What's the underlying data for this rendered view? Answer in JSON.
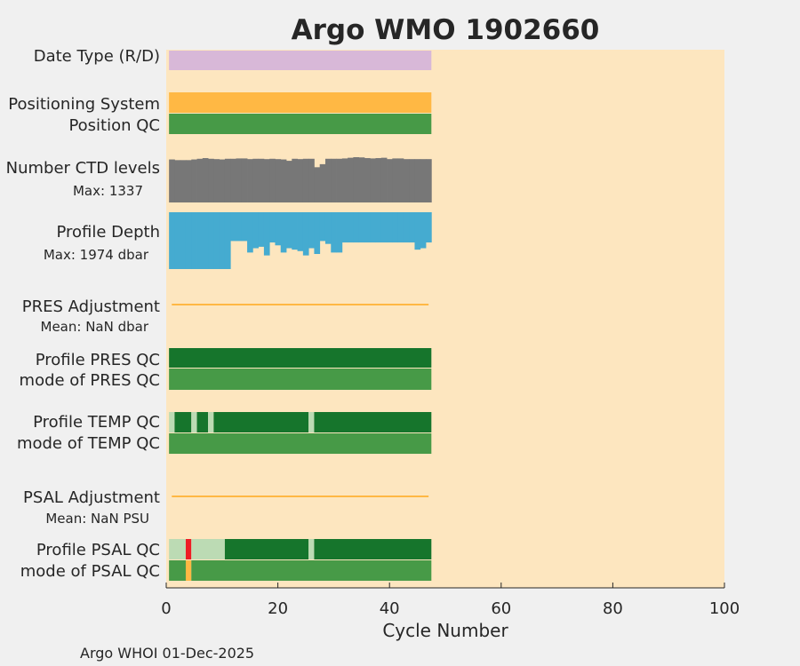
{
  "chart_data": {
    "type": "bar",
    "title": "Argo WMO 1902660",
    "xlabel": "Cycle Number",
    "xlim": [
      0,
      100
    ],
    "xticks": [
      0,
      20,
      40,
      60,
      80,
      100
    ],
    "footer": "Argo WHOI 01-Dec-2025",
    "grid": false,
    "rows": {
      "date_type": {
        "label": "Date Type (R/D)",
        "color": "#d8b8d8",
        "first_cycle": 1,
        "last_cycle": 47
      },
      "positioning_system": {
        "label": "Positioning System",
        "color": "#ffb844",
        "first_cycle": 1,
        "last_cycle": 47
      },
      "position_qc": {
        "label": "Position QC",
        "color": "#479a47",
        "first_cycle": 1,
        "last_cycle": 47
      },
      "ctd_levels": {
        "label": "Number CTD levels",
        "max_label": "Max: 1337",
        "max": 1337,
        "color": "#777777",
        "values": [
          1270,
          1250,
          1250,
          1250,
          1270,
          1290,
          1310,
          1290,
          1280,
          1270,
          1290,
          1290,
          1300,
          1300,
          1280,
          1290,
          1290,
          1280,
          1290,
          1280,
          1270,
          1230,
          1290,
          1280,
          1290,
          1290,
          1040,
          1130,
          1290,
          1290,
          1290,
          1300,
          1320,
          1337,
          1330,
          1310,
          1300,
          1310,
          1320,
          1280,
          1300,
          1300,
          1280,
          1280,
          1280,
          1280,
          1280
        ]
      },
      "profile_depth": {
        "label": "Profile Depth",
        "max_label": "Max: 1974 dbar",
        "max": 1974,
        "color": "#45abd0",
        "values": [
          1974,
          1974,
          1974,
          1974,
          1974,
          1974,
          1974,
          1974,
          1974,
          1974,
          1974,
          1000,
          1000,
          1000,
          1400,
          1250,
          1200,
          1500,
          1050,
          1150,
          1400,
          1250,
          1300,
          1350,
          1500,
          1250,
          1450,
          1000,
          1100,
          1400,
          1400,
          1050,
          1050,
          1050,
          1050,
          1050,
          1050,
          1050,
          1050,
          1050,
          1050,
          1050,
          1050,
          1050,
          1300,
          1250,
          1050
        ]
      },
      "pres_adjustment": {
        "label": "PRES Adjustment",
        "mean_label": "Mean:  NaN dbar",
        "mean_color": "#e2137f",
        "line_color": "#ffb844"
      },
      "profile_pres_qc": {
        "label": "Profile PRES QC",
        "segments": [
          {
            "from": 1,
            "to": 47,
            "color": "#16752c"
          }
        ]
      },
      "mode_pres_qc": {
        "label": "mode of PRES QC",
        "segments": [
          {
            "from": 1,
            "to": 47,
            "color": "#479a47"
          }
        ]
      },
      "profile_temp_qc": {
        "label": "Profile TEMP QC",
        "segments": [
          {
            "from": 1,
            "to": 1,
            "color": "#bcdbb4"
          },
          {
            "from": 2,
            "to": 4,
            "color": "#16752c"
          },
          {
            "from": 5,
            "to": 5,
            "color": "#bcdbb4"
          },
          {
            "from": 6,
            "to": 7,
            "color": "#16752c"
          },
          {
            "from": 8,
            "to": 8,
            "color": "#bcdbb4"
          },
          {
            "from": 9,
            "to": 25,
            "color": "#16752c"
          },
          {
            "from": 26,
            "to": 26,
            "color": "#bcdbb4"
          },
          {
            "from": 27,
            "to": 47,
            "color": "#16752c"
          }
        ]
      },
      "mode_temp_qc": {
        "label": "mode of TEMP QC",
        "segments": [
          {
            "from": 1,
            "to": 47,
            "color": "#479a47"
          }
        ]
      },
      "psal_adjustment": {
        "label": "PSAL Adjustment",
        "mean_label": "Mean:  NaN PSU",
        "mean_color": "#1a8fc0",
        "line_color": "#ffb844"
      },
      "profile_psal_qc": {
        "label": "Profile PSAL QC",
        "segments": [
          {
            "from": 1,
            "to": 3,
            "color": "#bcdbb4"
          },
          {
            "from": 4,
            "to": 4,
            "color": "#ee1c25"
          },
          {
            "from": 5,
            "to": 10,
            "color": "#bcdbb4"
          },
          {
            "from": 11,
            "to": 25,
            "color": "#16752c"
          },
          {
            "from": 26,
            "to": 26,
            "color": "#bcdbb4"
          },
          {
            "from": 27,
            "to": 47,
            "color": "#16752c"
          }
        ]
      },
      "mode_psal_qc": {
        "label": "mode of PSAL QC",
        "segments": [
          {
            "from": 1,
            "to": 3,
            "color": "#479a47"
          },
          {
            "from": 4,
            "to": 4,
            "color": "#ffb844"
          },
          {
            "from": 5,
            "to": 47,
            "color": "#479a47"
          }
        ]
      }
    },
    "colors": {
      "plot_background": "#fde6bf",
      "title": "#0a8fc0"
    }
  }
}
